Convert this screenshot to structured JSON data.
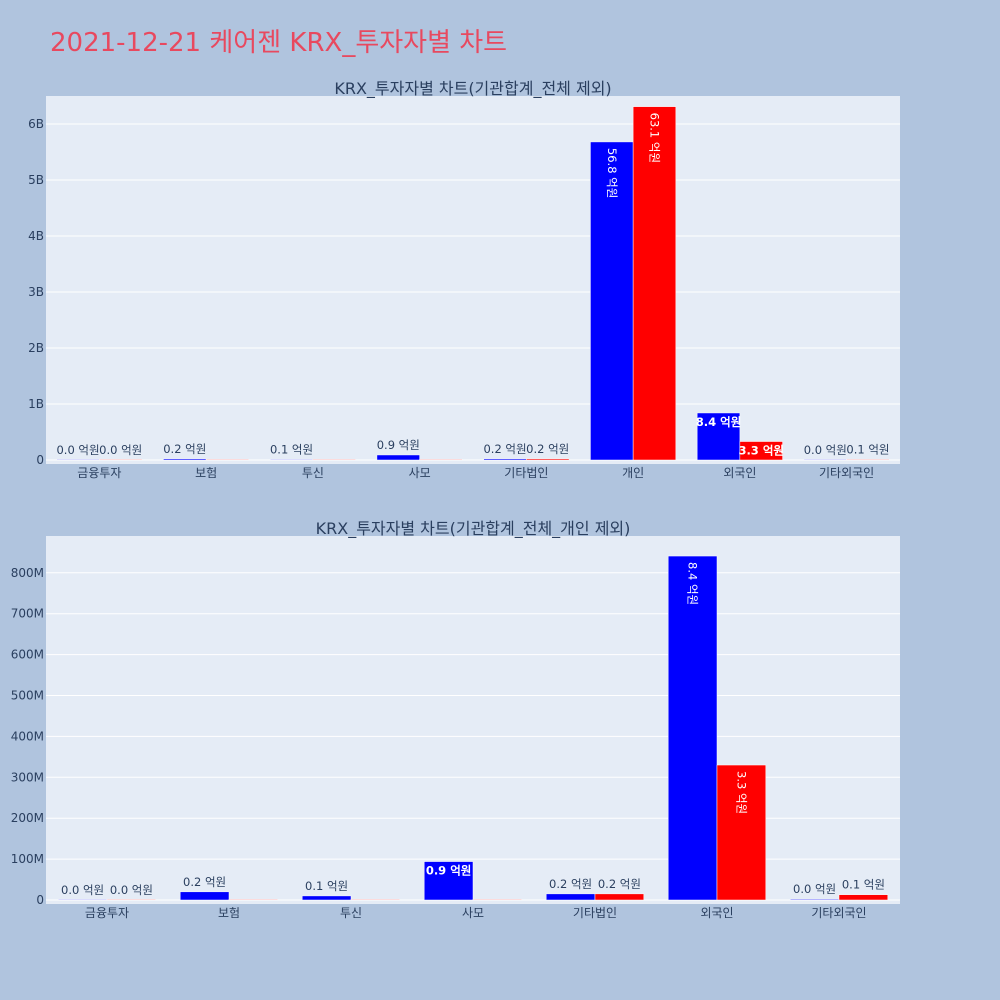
{
  "page_title": "2021-12-21 케어젠 KRX_투자자별 차트",
  "chart_data": [
    {
      "type": "bar",
      "title": "KRX_투자자별 차트(기관합계_전체 제외)",
      "categories": [
        "금융투자",
        "보험",
        "투신",
        "사모",
        "기타법인",
        "개인",
        "외국인",
        "기타외국인"
      ],
      "ylim": [
        0,
        6500000000
      ],
      "yticks": [
        0,
        1000000000,
        2000000000,
        3000000000,
        4000000000,
        5000000000,
        6000000000
      ],
      "ytick_labels": [
        "0",
        "1B",
        "2B",
        "3B",
        "4B",
        "5B",
        "6B"
      ],
      "grid": true,
      "series": [
        {
          "color": "#0000ff",
          "values": [
            0,
            20000000,
            10000000,
            90000000,
            20000000,
            5680000000,
            840000000,
            0
          ],
          "labels": [
            "0.0 억원",
            "0.2 억원",
            "0.1 억원",
            "0.9 억원",
            "0.2 억원",
            "56.8 억원",
            "8.4 억원",
            "0.0 억원"
          ]
        },
        {
          "color": "#ff0000",
          "values": [
            0,
            0,
            0,
            0,
            20000000,
            6310000000,
            330000000,
            10000000
          ],
          "labels": [
            "0.0 억원",
            "",
            "",
            "",
            "0.2 억원",
            "63.1 억원",
            "3.3 억원",
            "0.1 억원"
          ]
        }
      ]
    },
    {
      "type": "bar",
      "title": "KRX_투자자별 차트(기관합계_전체_개인 제외)",
      "categories": [
        "금융투자",
        "보험",
        "투신",
        "사모",
        "기타법인",
        "외국인",
        "기타외국인"
      ],
      "ylim": [
        0,
        890000000
      ],
      "yticks": [
        0,
        100000000,
        200000000,
        300000000,
        400000000,
        500000000,
        600000000,
        700000000,
        800000000
      ],
      "ytick_labels": [
        "0",
        "100M",
        "200M",
        "300M",
        "400M",
        "500M",
        "600M",
        "700M",
        "800M"
      ],
      "grid": true,
      "series": [
        {
          "color": "#0000ff",
          "values": [
            0,
            20000000,
            10000000,
            94000000,
            15000000,
            841000000,
            2000000
          ],
          "labels": [
            "0.0 억원",
            "0.2 억원",
            "0.1 억원",
            "0.9 억원",
            "0.2 억원",
            "8.4 억원",
            "0.0 억원"
          ]
        },
        {
          "color": "#ff0000",
          "values": [
            0,
            0,
            0,
            0,
            15000000,
            330000000,
            13000000
          ],
          "labels": [
            "0.0 억원",
            "",
            "",
            "",
            "0.2 억원",
            "3.3 억원",
            "0.1 억원"
          ]
        }
      ]
    }
  ]
}
